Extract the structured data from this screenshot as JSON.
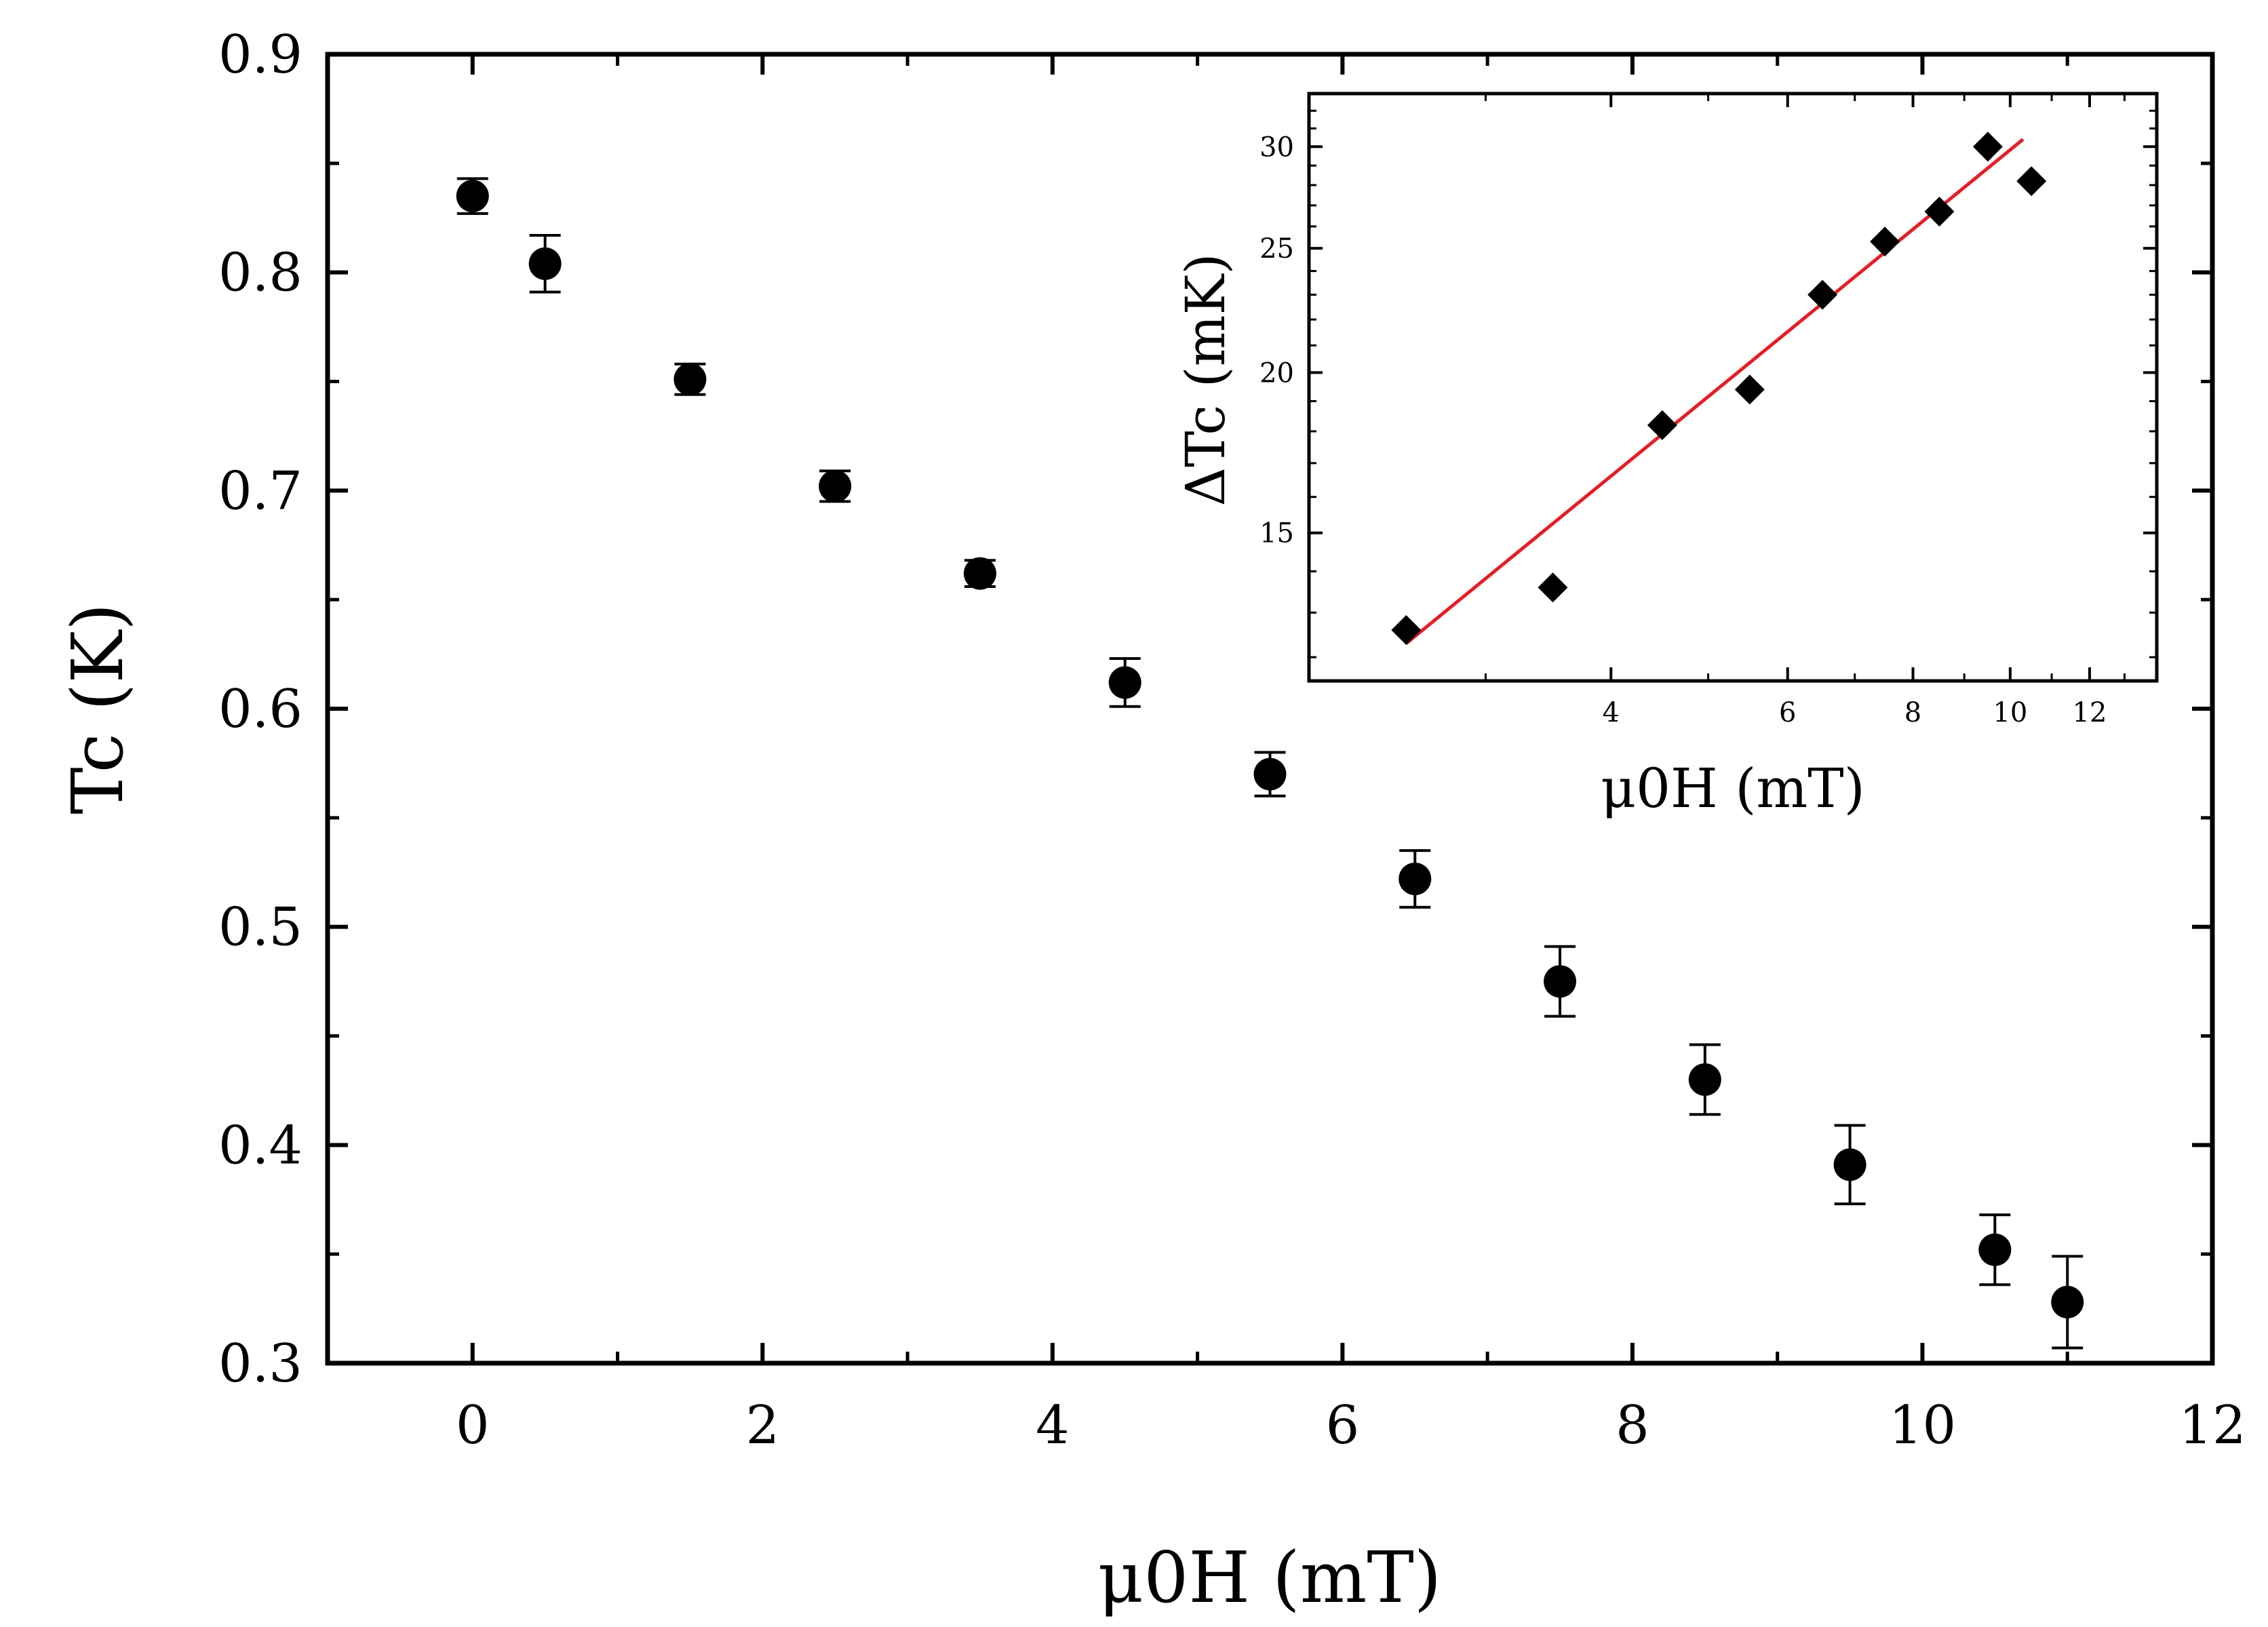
{
  "chart_data": [
    {
      "id": "main",
      "type": "scatter",
      "title": "",
      "xlabel": "μ0H (mT)",
      "ylabel": "Tc (K)",
      "xlim": [
        -1,
        12
      ],
      "ylim": [
        0.3,
        0.9
      ],
      "x_ticks": [
        0,
        2,
        4,
        6,
        8,
        10,
        12
      ],
      "x_minor_ticks": [
        1,
        3,
        5,
        7,
        9,
        11
      ],
      "y_ticks": [
        0.3,
        0.4,
        0.5,
        0.6,
        0.7,
        0.8,
        0.9
      ],
      "y_minor_ticks": [
        0.35,
        0.45,
        0.55,
        0.65,
        0.75,
        0.85
      ],
      "series": [
        {
          "name": "Tc",
          "color": "#000000",
          "marker": "circle",
          "x": [
            0,
            0.5,
            1.5,
            2.5,
            3.5,
            4.5,
            5.5,
            6.5,
            7.5,
            8.5,
            9.5,
            10.5,
            11
          ],
          "y": [
            0.835,
            0.804,
            0.751,
            0.702,
            0.662,
            0.612,
            0.57,
            0.522,
            0.475,
            0.43,
            0.391,
            0.352,
            0.328
          ],
          "yerr": [
            0.008,
            0.013,
            0.007,
            0.007,
            0.006,
            0.011,
            0.01,
            0.013,
            0.016,
            0.016,
            0.018,
            0.016,
            0.021
          ]
        }
      ]
    },
    {
      "id": "inset",
      "type": "scatter",
      "title": "",
      "xlabel": "μ0H (mT)",
      "ylabel": "ΔTc (mK)",
      "xscale": "log",
      "yscale": "log",
      "xlim": [
        2,
        14
      ],
      "ylim": [
        11.5,
        33
      ],
      "x_ticks": [
        4,
        6,
        8,
        10,
        12
      ],
      "y_ticks": [
        15,
        20,
        25,
        30
      ],
      "series": [
        {
          "name": "ΔTc",
          "color": "#000000",
          "marker": "diamond",
          "x": [
            2.5,
            3.5,
            4.5,
            5.5,
            6.5,
            7.5,
            8.5,
            9.5,
            10.5
          ],
          "y": [
            12.6,
            13.6,
            18.2,
            19.4,
            23.0,
            25.3,
            26.7,
            30.0,
            28.2
          ]
        },
        {
          "name": "Linear fit",
          "color": "#e41e26",
          "line": true,
          "x": [
            2.5,
            10.3
          ],
          "y": [
            12.3,
            30.4
          ]
        }
      ]
    }
  ]
}
